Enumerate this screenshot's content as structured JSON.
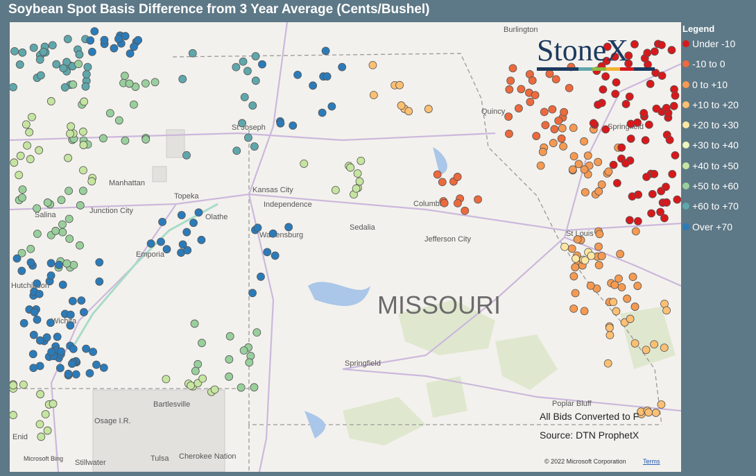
{
  "header": {
    "title": "Soybean Spot Basis Difference from 3 Year Average (Cents/Bushel)"
  },
  "legend": {
    "title": "Legend",
    "items": [
      {
        "label": "Under -10",
        "color": "#d7191c"
      },
      {
        "label": "-10 to 0",
        "color": "#ec6a3d"
      },
      {
        "label": "0 to +10",
        "color": "#f59a52"
      },
      {
        "label": "+10 to +20",
        "color": "#fdbf72"
      },
      {
        "label": "+20 to +30",
        "color": "#fde7a3"
      },
      {
        "label": "+30 to +40",
        "color": "#eef4bd"
      },
      {
        "label": "+40 to +50",
        "color": "#c6e5a0"
      },
      {
        "label": "+50 to +60",
        "color": "#99cf9c"
      },
      {
        "label": "+60 to +70",
        "color": "#5fa7ab"
      },
      {
        "label": "Over +70",
        "color": "#2c7bb9"
      }
    ]
  },
  "map": {
    "region": "MISSOURI",
    "places": [
      "Burlington",
      "St Joseph",
      "Manhattan",
      "Topeka",
      "Kansas City",
      "Independence",
      "Columbia",
      "Junction City",
      "Salina",
      "Olathe",
      "Sedalia",
      "Warrensburg",
      "Jefferson City",
      "St Louis",
      "Emporia",
      "Hutchinson",
      "Wichita",
      "Springfield",
      "Springfield",
      "Quincy",
      "Bartlesville",
      "Osage I.R.",
      "Poplar Bluff",
      "Tulsa",
      "Cherokee Nation",
      "Stillwater",
      "Enid"
    ]
  },
  "logo": "StoneX",
  "notes": [
    "All Bids Converted to F",
    "Source: DTN ProphetX"
  ],
  "attribution": {
    "provider": "Microsoft Bing",
    "copyright": "© 2022 Microsoft Corporation",
    "terms": "Terms"
  }
}
